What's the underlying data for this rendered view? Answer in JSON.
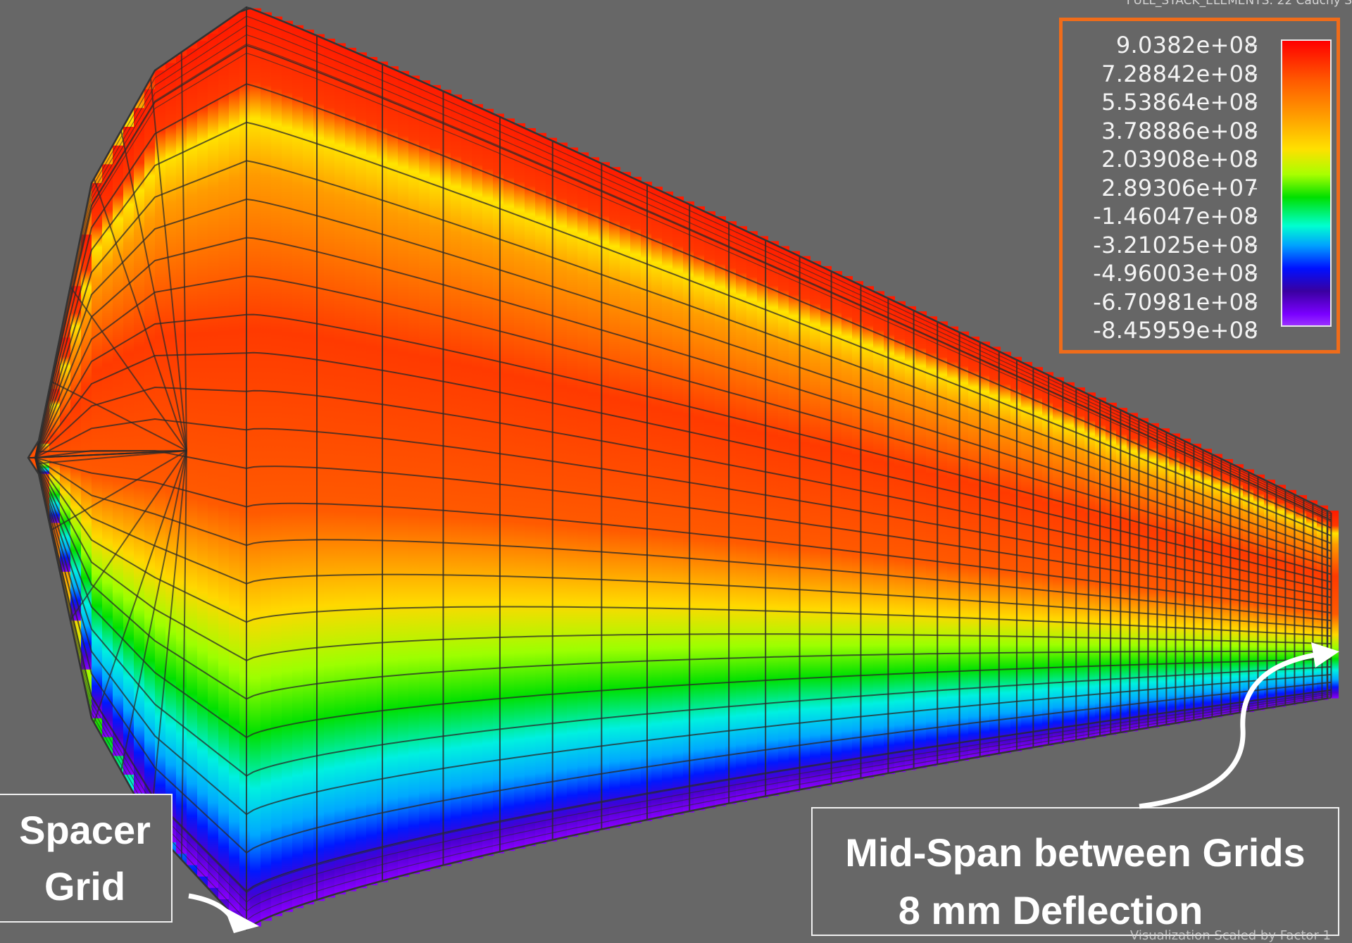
{
  "top_caption": "FULL_STACK_ELEMENTS: 22 Cauchy S",
  "bottom_caption": "Visualization Scaled by Factor 1",
  "legend": {
    "labels": [
      "9.0382e+08",
      "7.28842e+08",
      "5.53864e+08",
      "3.78886e+08",
      "2.03908e+08",
      "2.89306e+07",
      "-1.46047e+08",
      "-3.21025e+08",
      "-4.96003e+08",
      "-6.70981e+08",
      "-8.45959e+08"
    ],
    "border_color": "#ef6c1a",
    "colormap": [
      "#ff0000",
      "#ff9a00",
      "#ffe000",
      "#00e000",
      "#00ffd0",
      "#0010ff",
      "#7a00ff"
    ]
  },
  "annotations": {
    "spacer_grid_line1": "Spacer",
    "spacer_grid_line2": "Grid",
    "midspan_line1": "Mid-Span between Grids",
    "midspan_line2": "8 mm Deflection"
  },
  "mesh": {
    "colors": {
      "max": "#ff2a00",
      "high": "#ff8c00",
      "mid": "#ffe600",
      "zero": "#33e000",
      "low": "#00e8e8",
      "lower": "#0020ff",
      "min": "#8a00ff"
    }
  }
}
